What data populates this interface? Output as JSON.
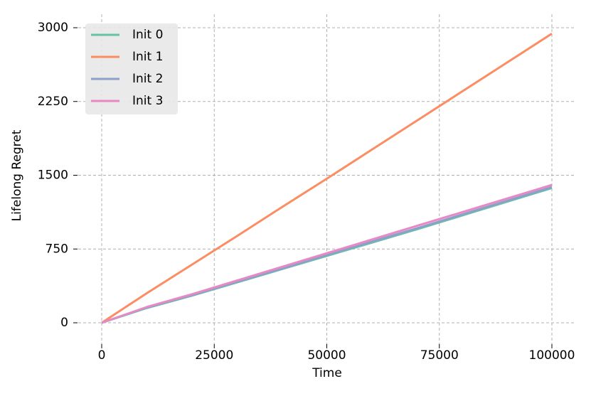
{
  "chart_data": {
    "type": "line",
    "x_label": "Time",
    "y_label": "Lifelong Regret",
    "x": [
      0,
      10000,
      20000,
      30000,
      40000,
      50000,
      60000,
      70000,
      80000,
      90000,
      100000
    ],
    "series": [
      {
        "name": "Init 0",
        "color": "#66c2a5",
        "values": [
          0,
          150,
          275,
          410,
          545,
          680,
          815,
          950,
          1090,
          1230,
          1370
        ]
      },
      {
        "name": "Init 1",
        "color": "#fc8d62",
        "values": [
          0,
          300,
          590,
          880,
          1175,
          1465,
          1760,
          2055,
          2350,
          2645,
          2940
        ]
      },
      {
        "name": "Init 2",
        "color": "#8da0cb",
        "values": [
          0,
          155,
          280,
          415,
          550,
          690,
          825,
          960,
          1100,
          1240,
          1380
        ]
      },
      {
        "name": "Init 3",
        "color": "#e78ac3",
        "values": [
          0,
          160,
          290,
          429,
          568,
          707,
          846,
          985,
          1124,
          1263,
          1402
        ]
      }
    ],
    "xlim": [
      0,
      100000
    ],
    "xticks": [
      0,
      25000,
      50000,
      75000,
      100000
    ],
    "ylim": [
      0,
      3000
    ],
    "yticks": [
      0,
      750,
      1500,
      2250,
      3000
    ],
    "grid": true,
    "legend": "upper left"
  }
}
